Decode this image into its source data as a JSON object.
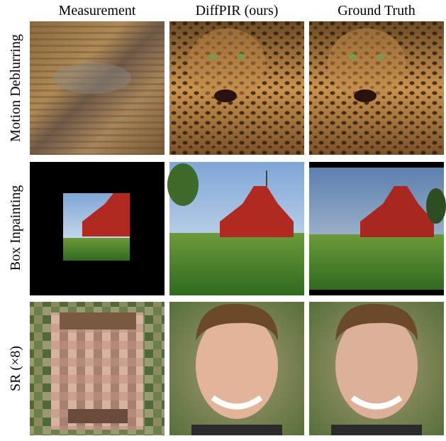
{
  "columns": [
    "Measurement",
    "DiffPIR (ours)",
    "Ground Truth"
  ],
  "rows": [
    "Motion Deblurring",
    "Box Inpainting",
    "SR (×8)"
  ]
}
